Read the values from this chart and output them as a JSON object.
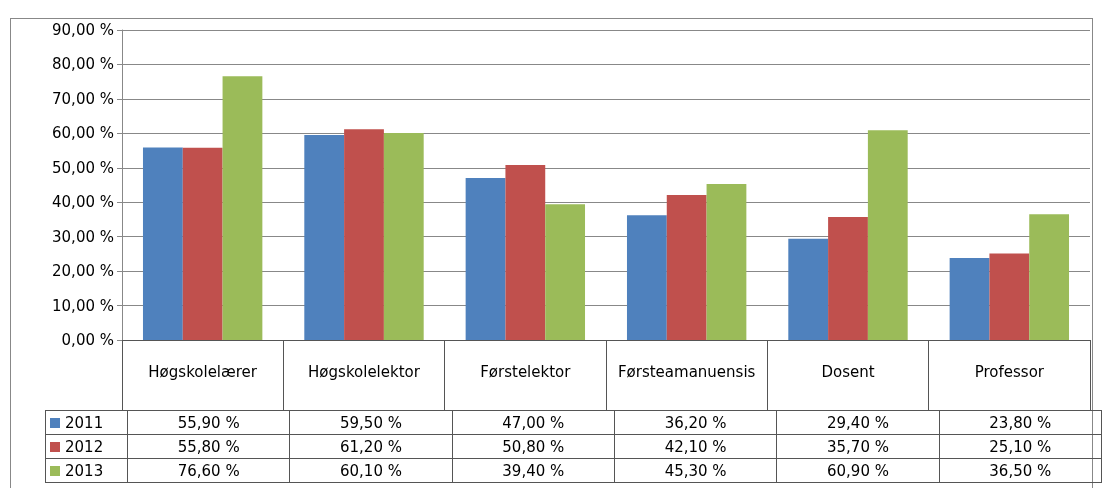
{
  "chart_data": {
    "type": "bar",
    "categories": [
      "Høgskolelærer",
      "Høgskolelektor",
      "Førstelektor",
      "Førsteamanuensis",
      "Dosent",
      "Professor"
    ],
    "series": [
      {
        "name": "2011",
        "color": "#4f81bd",
        "values": [
          55.9,
          59.5,
          47.0,
          36.2,
          29.4,
          23.8
        ],
        "value_labels": [
          "55,90 %",
          "59,50 %",
          "47,00 %",
          "36,20 %",
          "29,40 %",
          "23,80 %"
        ]
      },
      {
        "name": "2012",
        "color": "#c0504d",
        "values": [
          55.8,
          61.2,
          50.8,
          42.1,
          35.7,
          25.1
        ],
        "value_labels": [
          "55,80 %",
          "61,20 %",
          "50,80 %",
          "42,10 %",
          "35,70 %",
          "25,10 %"
        ]
      },
      {
        "name": "2013",
        "color": "#9bbb59",
        "values": [
          76.6,
          60.1,
          39.4,
          45.3,
          60.9,
          36.5
        ],
        "value_labels": [
          "76,60 %",
          "60,10 %",
          "39,40 %",
          "45,30 %",
          "60,90 %",
          "36,50 %"
        ]
      }
    ],
    "ylim": [
      0,
      90
    ],
    "yticks": [
      {
        "value": 0,
        "label": "0,00 %"
      },
      {
        "value": 10,
        "label": "10,00 %"
      },
      {
        "value": 20,
        "label": "20,00 %"
      },
      {
        "value": 30,
        "label": "30,00 %"
      },
      {
        "value": 40,
        "label": "40,00 %"
      },
      {
        "value": 50,
        "label": "50,00 %"
      },
      {
        "value": 60,
        "label": "60,00 %"
      },
      {
        "value": 70,
        "label": "70,00 %"
      },
      {
        "value": 80,
        "label": "80,00 %"
      },
      {
        "value": 90,
        "label": "90,00 %"
      }
    ],
    "grid": "y",
    "legend": "bottom"
  }
}
